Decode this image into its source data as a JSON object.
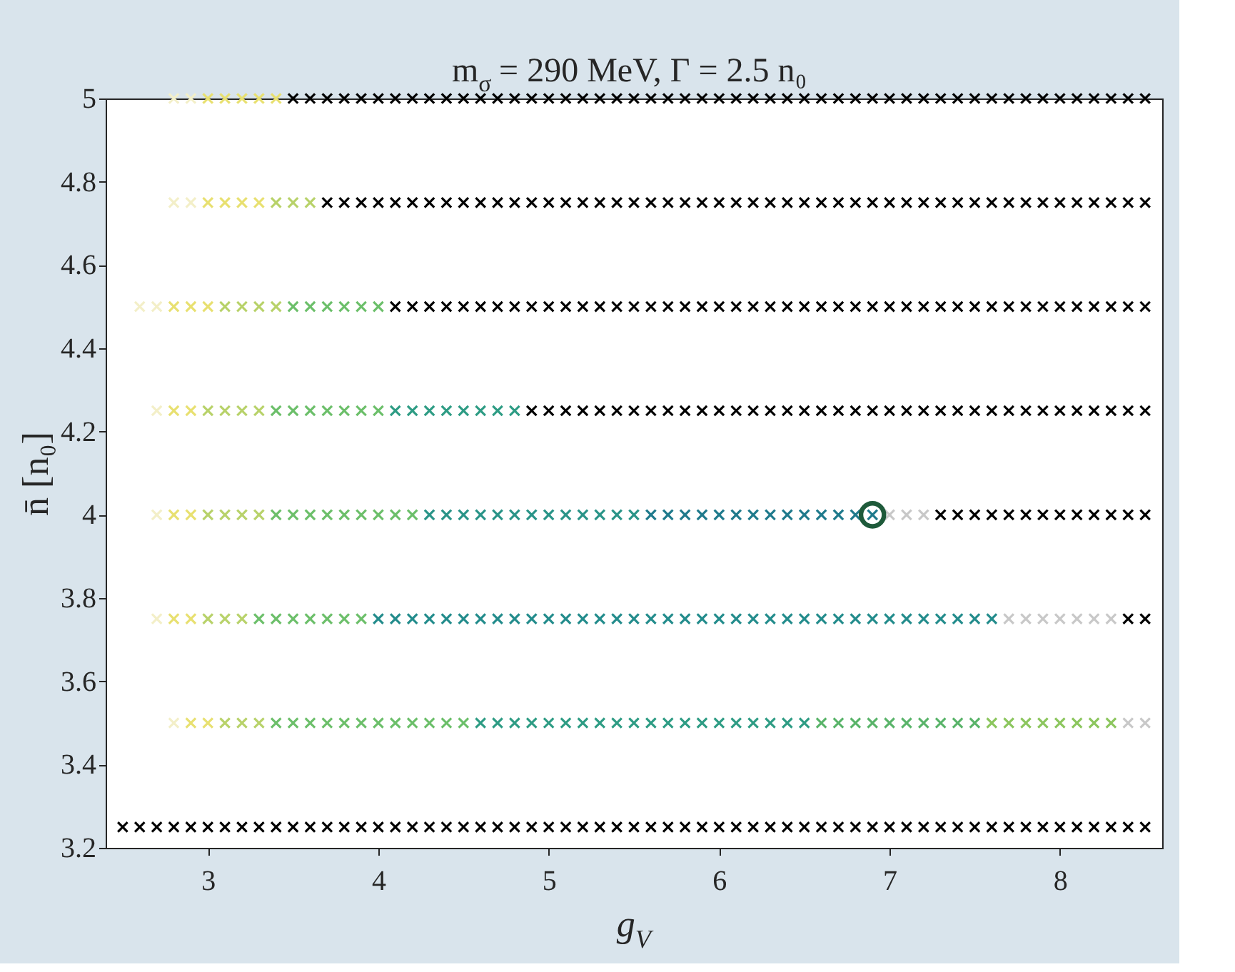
{
  "chart_data": {
    "type": "scatter",
    "title": "m$_{σ}$ = 290 MeV, Γ = 2.5 n₀",
    "xlabel": "g$_{V}$",
    "ylabel": "n̄ [n₀]",
    "marker": "cross",
    "grid": false,
    "xlim": [
      2.4,
      8.6
    ],
    "xticks": [
      3,
      4,
      5,
      6,
      7,
      8
    ],
    "ylim": [
      3.2,
      5.0
    ],
    "yticks": [
      3.2,
      3.4,
      3.6,
      3.8,
      4,
      4.2,
      4.4,
      4.6,
      4.8,
      5
    ],
    "series": [
      {
        "color": "#f3efc8",
        "x": [
          2.8,
          2.9
        ],
        "values": [
          5,
          5
        ]
      },
      {
        "color": "#e8e070",
        "x": [
          3.0,
          3.1,
          3.2,
          3.3,
          3.4
        ],
        "values": [
          5,
          5,
          5,
          5,
          5
        ]
      },
      {
        "color": "#000000",
        "x": [
          3.5,
          3.6,
          3.7,
          3.8,
          3.9,
          4.0,
          4.1,
          4.2,
          4.3,
          4.4,
          4.5,
          4.6,
          4.7,
          4.8,
          4.9,
          5.0,
          5.1,
          5.2,
          5.3,
          5.4,
          5.5,
          5.6,
          5.7,
          5.8,
          5.9,
          6.0,
          6.1,
          6.2,
          6.3,
          6.4,
          6.5,
          6.6,
          6.7,
          6.8,
          6.9,
          7.0,
          7.1,
          7.2,
          7.3,
          7.4,
          7.5,
          7.6,
          7.7,
          7.8,
          7.9,
          8.0,
          8.1,
          8.2,
          8.3,
          8.4,
          8.5
        ],
        "values": [
          5,
          5,
          5,
          5,
          5,
          5,
          5,
          5,
          5,
          5,
          5,
          5,
          5,
          5,
          5,
          5,
          5,
          5,
          5,
          5,
          5,
          5,
          5,
          5,
          5,
          5,
          5,
          5,
          5,
          5,
          5,
          5,
          5,
          5,
          5,
          5,
          5,
          5,
          5,
          5,
          5,
          5,
          5,
          5,
          5,
          5,
          5,
          5,
          5,
          5,
          5
        ]
      },
      {
        "color": "#f3efc8",
        "x": [
          2.8,
          2.9
        ],
        "values": [
          4.75,
          4.75
        ]
      },
      {
        "color": "#e8e070",
        "x": [
          3.0,
          3.1,
          3.2,
          3.3
        ],
        "values": [
          4.75,
          4.75,
          4.75,
          4.75
        ]
      },
      {
        "color": "#b8d26a",
        "x": [
          3.4,
          3.5,
          3.6
        ],
        "values": [
          4.75,
          4.75,
          4.75
        ]
      },
      {
        "color": "#000000",
        "x": [
          3.7,
          3.8,
          3.9,
          4.0,
          4.1,
          4.2,
          4.3,
          4.4,
          4.5,
          4.6,
          4.7,
          4.8,
          4.9,
          5.0,
          5.1,
          5.2,
          5.3,
          5.4,
          5.5,
          5.6,
          5.7,
          5.8,
          5.9,
          6.0,
          6.1,
          6.2,
          6.3,
          6.4,
          6.5,
          6.6,
          6.7,
          6.8,
          6.9,
          7.0,
          7.1,
          7.2,
          7.3,
          7.4,
          7.5,
          7.6,
          7.7,
          7.8,
          7.9,
          8.0,
          8.1,
          8.2,
          8.3,
          8.4,
          8.5
        ],
        "values": [
          4.75,
          4.75,
          4.75,
          4.75,
          4.75,
          4.75,
          4.75,
          4.75,
          4.75,
          4.75,
          4.75,
          4.75,
          4.75,
          4.75,
          4.75,
          4.75,
          4.75,
          4.75,
          4.75,
          4.75,
          4.75,
          4.75,
          4.75,
          4.75,
          4.75,
          4.75,
          4.75,
          4.75,
          4.75,
          4.75,
          4.75,
          4.75,
          4.75,
          4.75,
          4.75,
          4.75,
          4.75,
          4.75,
          4.75,
          4.75,
          4.75,
          4.75,
          4.75,
          4.75,
          4.75,
          4.75,
          4.75,
          4.75,
          4.75
        ]
      },
      {
        "color": "#f3efc8",
        "x": [
          2.6,
          2.7
        ],
        "values": [
          4.5,
          4.5
        ]
      },
      {
        "color": "#e8e070",
        "x": [
          2.8,
          2.9,
          3.0
        ],
        "values": [
          4.5,
          4.5,
          4.5
        ]
      },
      {
        "color": "#b8d26a",
        "x": [
          3.1,
          3.2,
          3.3,
          3.4
        ],
        "values": [
          4.5,
          4.5,
          4.5,
          4.5
        ]
      },
      {
        "color": "#6cbf6a",
        "x": [
          3.5,
          3.6,
          3.7,
          3.8,
          3.9,
          4.0
        ],
        "values": [
          4.5,
          4.5,
          4.5,
          4.5,
          4.5,
          4.5
        ]
      },
      {
        "color": "#000000",
        "x": [
          4.1,
          4.2,
          4.3,
          4.4,
          4.5,
          4.6,
          4.7,
          4.8,
          4.9,
          5.0,
          5.1,
          5.2,
          5.3,
          5.4,
          5.5,
          5.6,
          5.7,
          5.8,
          5.9,
          6.0,
          6.1,
          6.2,
          6.3,
          6.4,
          6.5,
          6.6,
          6.7,
          6.8,
          6.9,
          7.0,
          7.1,
          7.2,
          7.3,
          7.4,
          7.5,
          7.6,
          7.7,
          7.8,
          7.9,
          8.0,
          8.1,
          8.2,
          8.3,
          8.4,
          8.5
        ],
        "values": [
          4.5,
          4.5,
          4.5,
          4.5,
          4.5,
          4.5,
          4.5,
          4.5,
          4.5,
          4.5,
          4.5,
          4.5,
          4.5,
          4.5,
          4.5,
          4.5,
          4.5,
          4.5,
          4.5,
          4.5,
          4.5,
          4.5,
          4.5,
          4.5,
          4.5,
          4.5,
          4.5,
          4.5,
          4.5,
          4.5,
          4.5,
          4.5,
          4.5,
          4.5,
          4.5,
          4.5,
          4.5,
          4.5,
          4.5,
          4.5,
          4.5,
          4.5,
          4.5,
          4.5,
          4.5
        ]
      },
      {
        "color": "#f3efc8",
        "x": [
          2.7
        ],
        "values": [
          4.25
        ]
      },
      {
        "color": "#e8e070",
        "x": [
          2.8,
          2.9
        ],
        "values": [
          4.25,
          4.25
        ]
      },
      {
        "color": "#b8d26a",
        "x": [
          3.0,
          3.1,
          3.2,
          3.3
        ],
        "values": [
          4.25,
          4.25,
          4.25,
          4.25
        ]
      },
      {
        "color": "#6cbf6a",
        "x": [
          3.4,
          3.5,
          3.6,
          3.7,
          3.8,
          3.9,
          4.0
        ],
        "values": [
          4.25,
          4.25,
          4.25,
          4.25,
          4.25,
          4.25,
          4.25
        ]
      },
      {
        "color": "#2e9c84",
        "x": [
          4.1,
          4.2,
          4.3,
          4.4,
          4.5,
          4.6,
          4.7,
          4.8
        ],
        "values": [
          4.25,
          4.25,
          4.25,
          4.25,
          4.25,
          4.25,
          4.25,
          4.25
        ]
      },
      {
        "color": "#000000",
        "x": [
          4.9,
          5.0,
          5.1,
          5.2,
          5.3,
          5.4,
          5.5,
          5.6,
          5.7,
          5.8,
          5.9,
          6.0,
          6.1,
          6.2,
          6.3,
          6.4,
          6.5,
          6.6,
          6.7,
          6.8,
          6.9,
          7.0,
          7.1,
          7.2,
          7.3,
          7.4,
          7.5,
          7.6,
          7.7,
          7.8,
          7.9,
          8.0,
          8.1,
          8.2,
          8.3,
          8.4,
          8.5
        ],
        "values": [
          4.25,
          4.25,
          4.25,
          4.25,
          4.25,
          4.25,
          4.25,
          4.25,
          4.25,
          4.25,
          4.25,
          4.25,
          4.25,
          4.25,
          4.25,
          4.25,
          4.25,
          4.25,
          4.25,
          4.25,
          4.25,
          4.25,
          4.25,
          4.25,
          4.25,
          4.25,
          4.25,
          4.25,
          4.25,
          4.25,
          4.25,
          4.25,
          4.25,
          4.25,
          4.25,
          4.25,
          4.25
        ]
      },
      {
        "color": "#f3efc8",
        "x": [
          2.7
        ],
        "values": [
          4
        ]
      },
      {
        "color": "#e8e070",
        "x": [
          2.8,
          2.9
        ],
        "values": [
          4,
          4
        ]
      },
      {
        "color": "#b8d26a",
        "x": [
          3.0,
          3.1,
          3.2,
          3.3
        ],
        "values": [
          4,
          4,
          4,
          4
        ]
      },
      {
        "color": "#6cbf6a",
        "x": [
          3.4,
          3.5,
          3.6,
          3.7,
          3.8,
          3.9,
          4.0,
          4.1,
          4.2
        ],
        "values": [
          4,
          4,
          4,
          4,
          4,
          4,
          4,
          4,
          4
        ]
      },
      {
        "color": "#2a9488",
        "x": [
          4.3,
          4.4,
          4.5,
          4.6,
          4.7,
          4.8,
          4.9,
          5.0,
          5.1,
          5.2,
          5.3,
          5.4,
          5.5
        ],
        "values": [
          4,
          4,
          4,
          4,
          4,
          4,
          4,
          4,
          4,
          4,
          4,
          4,
          4
        ]
      },
      {
        "color": "#1f7a8c",
        "x": [
          5.6,
          5.7,
          5.8,
          5.9,
          6.0,
          6.1,
          6.2,
          6.3,
          6.4,
          6.5,
          6.6,
          6.7,
          6.8,
          6.9
        ],
        "values": [
          4,
          4,
          4,
          4,
          4,
          4,
          4,
          4,
          4,
          4,
          4,
          4,
          4,
          4
        ]
      },
      {
        "color": "#c8c8c8",
        "x": [
          7.0,
          7.1,
          7.2
        ],
        "values": [
          4,
          4,
          4
        ]
      },
      {
        "color": "#000000",
        "x": [
          7.3,
          7.4,
          7.5,
          7.6,
          7.7,
          7.8,
          7.9,
          8.0,
          8.1,
          8.2,
          8.3,
          8.4,
          8.5
        ],
        "values": [
          4,
          4,
          4,
          4,
          4,
          4,
          4,
          4,
          4,
          4,
          4,
          4,
          4
        ]
      },
      {
        "color": "#1e5a3a",
        "marker": "circle",
        "x": [
          6.9
        ],
        "values": [
          4
        ]
      },
      {
        "color": "#f3efc8",
        "x": [
          2.7
        ],
        "values": [
          3.75
        ]
      },
      {
        "color": "#e8e070",
        "x": [
          2.8,
          2.9
        ],
        "values": [
          3.75,
          3.75
        ]
      },
      {
        "color": "#b8d26a",
        "x": [
          3.0,
          3.1,
          3.2
        ],
        "values": [
          3.75,
          3.75,
          3.75
        ]
      },
      {
        "color": "#6cbf6a",
        "x": [
          3.3,
          3.4,
          3.5,
          3.6,
          3.7,
          3.8,
          3.9
        ],
        "values": [
          3.75,
          3.75,
          3.75,
          3.75,
          3.75,
          3.75,
          3.75
        ]
      },
      {
        "color": "#238c8c",
        "x": [
          4.0,
          4.1,
          4.2,
          4.3,
          4.4,
          4.5,
          4.6,
          4.7,
          4.8,
          4.9,
          5.0,
          5.1,
          5.2,
          5.3,
          5.4,
          5.5,
          5.6,
          5.7,
          5.8,
          5.9,
          6.0,
          6.1,
          6.2,
          6.3,
          6.4,
          6.5,
          6.6,
          6.7,
          6.8,
          6.9,
          7.0,
          7.1,
          7.2,
          7.3,
          7.4,
          7.5,
          7.6
        ],
        "values": [
          3.75,
          3.75,
          3.75,
          3.75,
          3.75,
          3.75,
          3.75,
          3.75,
          3.75,
          3.75,
          3.75,
          3.75,
          3.75,
          3.75,
          3.75,
          3.75,
          3.75,
          3.75,
          3.75,
          3.75,
          3.75,
          3.75,
          3.75,
          3.75,
          3.75,
          3.75,
          3.75,
          3.75,
          3.75,
          3.75,
          3.75,
          3.75,
          3.75,
          3.75,
          3.75,
          3.75,
          3.75
        ]
      },
      {
        "color": "#c8c8c8",
        "x": [
          7.7,
          7.8,
          7.9,
          8.0,
          8.1,
          8.2,
          8.3
        ],
        "values": [
          3.75,
          3.75,
          3.75,
          3.75,
          3.75,
          3.75,
          3.75
        ]
      },
      {
        "color": "#000000",
        "x": [
          8.4,
          8.5
        ],
        "values": [
          3.75,
          3.75
        ]
      },
      {
        "color": "#f3efc8",
        "x": [
          2.8
        ],
        "values": [
          3.5
        ]
      },
      {
        "color": "#e8e070",
        "x": [
          2.9,
          3.0
        ],
        "values": [
          3.5,
          3.5
        ]
      },
      {
        "color": "#b8d26a",
        "x": [
          3.1,
          3.2,
          3.3
        ],
        "values": [
          3.5,
          3.5,
          3.5
        ]
      },
      {
        "color": "#6cbf6a",
        "x": [
          3.4,
          3.5,
          3.6,
          3.7,
          3.8,
          3.9,
          4.0,
          4.1,
          4.2,
          4.3,
          4.4,
          4.5
        ],
        "values": [
          3.5,
          3.5,
          3.5,
          3.5,
          3.5,
          3.5,
          3.5,
          3.5,
          3.5,
          3.5,
          3.5,
          3.5
        ]
      },
      {
        "color": "#2e9c84",
        "x": [
          4.6,
          4.7,
          4.8,
          4.9,
          5.0,
          5.1,
          5.2,
          5.3,
          5.4,
          5.5,
          5.6,
          5.7,
          5.8,
          5.9,
          6.0,
          6.1,
          6.2,
          6.3,
          6.4,
          6.5
        ],
        "values": [
          3.5,
          3.5,
          3.5,
          3.5,
          3.5,
          3.5,
          3.5,
          3.5,
          3.5,
          3.5,
          3.5,
          3.5,
          3.5,
          3.5,
          3.5,
          3.5,
          3.5,
          3.5,
          3.5,
          3.5
        ]
      },
      {
        "color": "#5ab46a",
        "x": [
          6.6,
          6.7,
          6.8,
          6.9,
          7.0,
          7.1,
          7.2,
          7.3,
          7.4,
          7.5
        ],
        "values": [
          3.5,
          3.5,
          3.5,
          3.5,
          3.5,
          3.5,
          3.5,
          3.5,
          3.5,
          3.5
        ]
      },
      {
        "color": "#8cc65e",
        "x": [
          7.6,
          7.7,
          7.8,
          7.9,
          8.0,
          8.1,
          8.2,
          8.3
        ],
        "values": [
          3.5,
          3.5,
          3.5,
          3.5,
          3.5,
          3.5,
          3.5,
          3.5
        ]
      },
      {
        "color": "#c8c8c8",
        "x": [
          8.4,
          8.5
        ],
        "values": [
          3.5,
          3.5
        ]
      },
      {
        "color": "#000000",
        "x": [
          2.5,
          2.6,
          2.7,
          2.8,
          2.9,
          3.0,
          3.1,
          3.2,
          3.3,
          3.4,
          3.5,
          3.6,
          3.7,
          3.8,
          3.9,
          4.0,
          4.1,
          4.2,
          4.3,
          4.4,
          4.5,
          4.6,
          4.7,
          4.8,
          4.9,
          5.0,
          5.1,
          5.2,
          5.3,
          5.4,
          5.5,
          5.6,
          5.7,
          5.8,
          5.9,
          6.0,
          6.1,
          6.2,
          6.3,
          6.4,
          6.5,
          6.6,
          6.7,
          6.8,
          6.9,
          7.0,
          7.1,
          7.2,
          7.3,
          7.4,
          7.5,
          7.6,
          7.7,
          7.8,
          7.9,
          8.0,
          8.1,
          8.2,
          8.3,
          8.4,
          8.5
        ],
        "values": [
          3.25,
          3.25,
          3.25,
          3.25,
          3.25,
          3.25,
          3.25,
          3.25,
          3.25,
          3.25,
          3.25,
          3.25,
          3.25,
          3.25,
          3.25,
          3.25,
          3.25,
          3.25,
          3.25,
          3.25,
          3.25,
          3.25,
          3.25,
          3.25,
          3.25,
          3.25,
          3.25,
          3.25,
          3.25,
          3.25,
          3.25,
          3.25,
          3.25,
          3.25,
          3.25,
          3.25,
          3.25,
          3.25,
          3.25,
          3.25,
          3.25,
          3.25,
          3.25,
          3.25,
          3.25,
          3.25,
          3.25,
          3.25,
          3.25,
          3.25,
          3.25,
          3.25,
          3.25,
          3.25,
          3.25,
          3.25,
          3.25,
          3.25,
          3.25,
          3.25,
          3.25
        ]
      }
    ]
  }
}
